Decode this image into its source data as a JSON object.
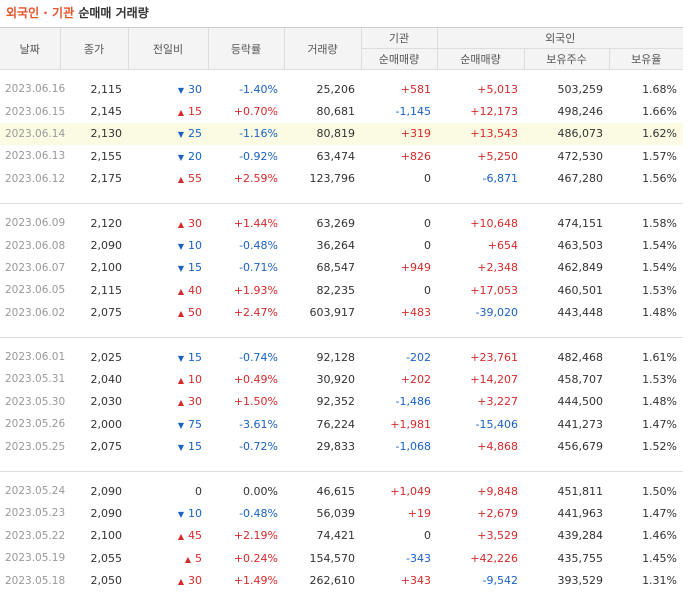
{
  "title": {
    "highlight": "외국인 · 기관",
    "rest": "순매매 거래량"
  },
  "headers": {
    "date": "날짜",
    "close": "종가",
    "change": "전일비",
    "rate": "등락률",
    "volume": "거래량",
    "inst_group": "기관",
    "inst_net": "순매매량",
    "foreign_group": "외국인",
    "foreign_net": "순매매량",
    "foreign_shares": "보유주수",
    "foreign_ratio": "보유율"
  },
  "colors": {
    "up": "#d62a2a",
    "down": "#1a61c5",
    "accent": "#e8542a"
  },
  "groups": [
    [
      {
        "date": "2023.06.16",
        "close": "2,115",
        "dir": "down",
        "change": "30",
        "rate": "-1.40%",
        "volume": "25,206",
        "inst": "+581",
        "foreign": "+5,013",
        "shares": "503,259",
        "ratio": "1.68%"
      },
      {
        "date": "2023.06.15",
        "close": "2,145",
        "dir": "up",
        "change": "15",
        "rate": "+0.70%",
        "volume": "80,681",
        "inst": "-1,145",
        "foreign": "+12,173",
        "shares": "498,246",
        "ratio": "1.66%"
      },
      {
        "date": "2023.06.14",
        "close": "2,130",
        "dir": "down",
        "change": "25",
        "rate": "-1.16%",
        "volume": "80,819",
        "inst": "+319",
        "foreign": "+13,543",
        "shares": "486,073",
        "ratio": "1.62%",
        "highlight": true
      },
      {
        "date": "2023.06.13",
        "close": "2,155",
        "dir": "down",
        "change": "20",
        "rate": "-0.92%",
        "volume": "63,474",
        "inst": "+826",
        "foreign": "+5,250",
        "shares": "472,530",
        "ratio": "1.57%"
      },
      {
        "date": "2023.06.12",
        "close": "2,175",
        "dir": "up",
        "change": "55",
        "rate": "+2.59%",
        "volume": "123,796",
        "inst": "0",
        "foreign": "-6,871",
        "shares": "467,280",
        "ratio": "1.56%"
      }
    ],
    [
      {
        "date": "2023.06.09",
        "close": "2,120",
        "dir": "up",
        "change": "30",
        "rate": "+1.44%",
        "volume": "63,269",
        "inst": "0",
        "foreign": "+10,648",
        "shares": "474,151",
        "ratio": "1.58%"
      },
      {
        "date": "2023.06.08",
        "close": "2,090",
        "dir": "down",
        "change": "10",
        "rate": "-0.48%",
        "volume": "36,264",
        "inst": "0",
        "foreign": "+654",
        "shares": "463,503",
        "ratio": "1.54%"
      },
      {
        "date": "2023.06.07",
        "close": "2,100",
        "dir": "down",
        "change": "15",
        "rate": "-0.71%",
        "volume": "68,547",
        "inst": "+949",
        "foreign": "+2,348",
        "shares": "462,849",
        "ratio": "1.54%"
      },
      {
        "date": "2023.06.05",
        "close": "2,115",
        "dir": "up",
        "change": "40",
        "rate": "+1.93%",
        "volume": "82,235",
        "inst": "0",
        "foreign": "+17,053",
        "shares": "460,501",
        "ratio": "1.53%"
      },
      {
        "date": "2023.06.02",
        "close": "2,075",
        "dir": "up",
        "change": "50",
        "rate": "+2.47%",
        "volume": "603,917",
        "inst": "+483",
        "foreign": "-39,020",
        "shares": "443,448",
        "ratio": "1.48%"
      }
    ],
    [
      {
        "date": "2023.06.01",
        "close": "2,025",
        "dir": "down",
        "change": "15",
        "rate": "-0.74%",
        "volume": "92,128",
        "inst": "-202",
        "foreign": "+23,761",
        "shares": "482,468",
        "ratio": "1.61%"
      },
      {
        "date": "2023.05.31",
        "close": "2,040",
        "dir": "up",
        "change": "10",
        "rate": "+0.49%",
        "volume": "30,920",
        "inst": "+202",
        "foreign": "+14,207",
        "shares": "458,707",
        "ratio": "1.53%"
      },
      {
        "date": "2023.05.30",
        "close": "2,030",
        "dir": "up",
        "change": "30",
        "rate": "+1.50%",
        "volume": "92,352",
        "inst": "-1,486",
        "foreign": "+3,227",
        "shares": "444,500",
        "ratio": "1.48%"
      },
      {
        "date": "2023.05.26",
        "close": "2,000",
        "dir": "down",
        "change": "75",
        "rate": "-3.61%",
        "volume": "76,224",
        "inst": "+1,981",
        "foreign": "-15,406",
        "shares": "441,273",
        "ratio": "1.47%"
      },
      {
        "date": "2023.05.25",
        "close": "2,075",
        "dir": "down",
        "change": "15",
        "rate": "-0.72%",
        "volume": "29,833",
        "inst": "-1,068",
        "foreign": "+4,868",
        "shares": "456,679",
        "ratio": "1.52%"
      }
    ],
    [
      {
        "date": "2023.05.24",
        "close": "2,090",
        "dir": "flat",
        "change": "0",
        "rate": "0.00%",
        "volume": "46,615",
        "inst": "+1,049",
        "foreign": "+9,848",
        "shares": "451,811",
        "ratio": "1.50%"
      },
      {
        "date": "2023.05.23",
        "close": "2,090",
        "dir": "down",
        "change": "10",
        "rate": "-0.48%",
        "volume": "56,039",
        "inst": "+19",
        "foreign": "+2,679",
        "shares": "441,963",
        "ratio": "1.47%"
      },
      {
        "date": "2023.05.22",
        "close": "2,100",
        "dir": "up",
        "change": "45",
        "rate": "+2.19%",
        "volume": "74,421",
        "inst": "0",
        "foreign": "+3,529",
        "shares": "439,284",
        "ratio": "1.46%"
      },
      {
        "date": "2023.05.19",
        "close": "2,055",
        "dir": "up",
        "change": "5",
        "rate": "+0.24%",
        "volume": "154,570",
        "inst": "-343",
        "foreign": "+42,226",
        "shares": "435,755",
        "ratio": "1.45%"
      },
      {
        "date": "2023.05.18",
        "close": "2,050",
        "dir": "up",
        "change": "30",
        "rate": "+1.49%",
        "volume": "262,610",
        "inst": "+343",
        "foreign": "-9,542",
        "shares": "393,529",
        "ratio": "1.31%"
      }
    ]
  ]
}
